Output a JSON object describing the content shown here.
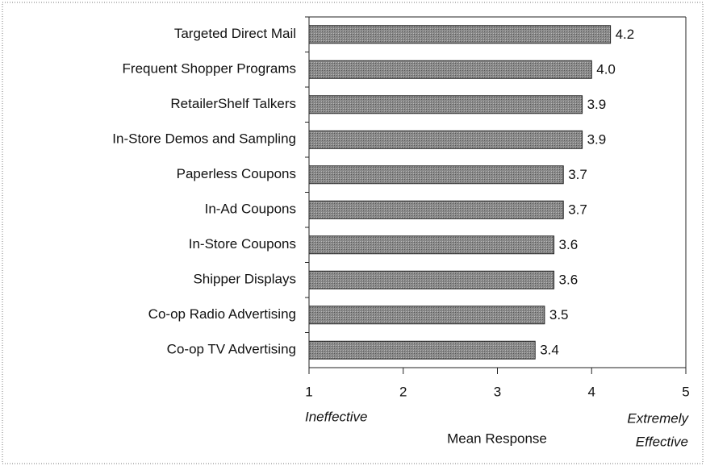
{
  "chart_data": {
    "type": "barh",
    "categories": [
      "Targeted Direct Mail",
      "Frequent Shopper Programs",
      "RetailerShelf Talkers",
      "In-Store Demos and Sampling",
      "Paperless Coupons",
      "In-Ad Coupons",
      "In-Store Coupons",
      "Shipper Displays",
      "Co-op Radio Advertising",
      "Co-op TV Advertising"
    ],
    "values": [
      4.2,
      4.0,
      3.9,
      3.9,
      3.7,
      3.7,
      3.6,
      3.6,
      3.5,
      3.4
    ],
    "value_labels": [
      "4.2",
      "4.0",
      "3.9",
      "3.9",
      "3.7",
      "3.7",
      "3.6",
      "3.6",
      "3.5",
      "3.4"
    ],
    "color": "#8a8a8a",
    "xlim": [
      1,
      5
    ],
    "xticks": [
      1,
      2,
      3,
      4,
      5
    ],
    "x_label": "Mean Response",
    "left_annotation": "Ineffective",
    "right_annotation": [
      "Extremely",
      "Effective"
    ]
  }
}
